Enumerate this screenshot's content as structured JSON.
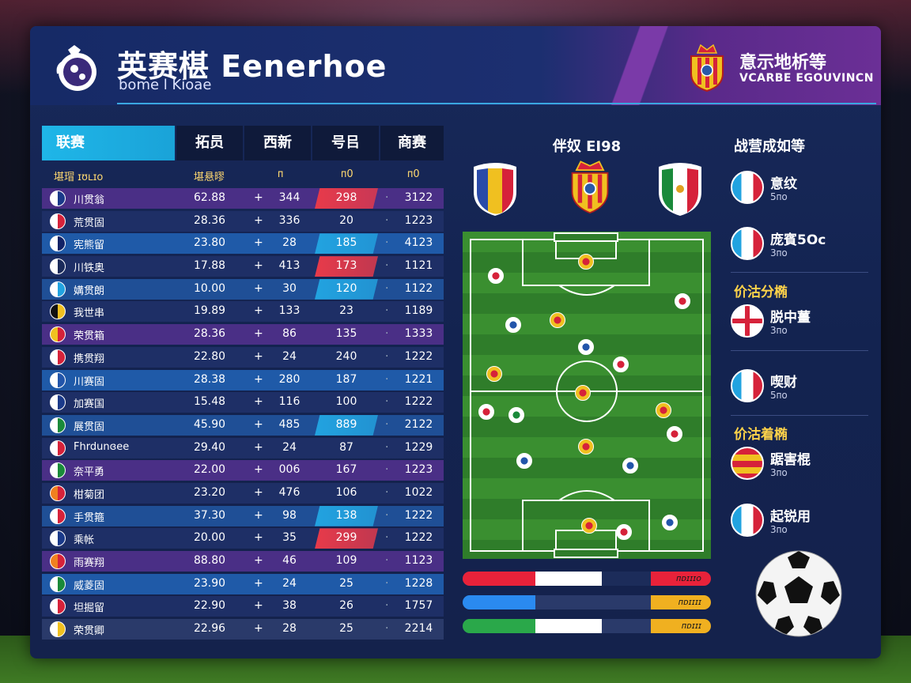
{
  "header": {
    "title": "英赛椹 Eenerhoe",
    "subtitle": "bome l Kioae",
    "right_title": "意示地析等",
    "right_sub": "VCARBE EGOUVINCN"
  },
  "table": {
    "headers": [
      "联赛",
      "拓员",
      "西新",
      "号㠯",
      "商赛"
    ],
    "subheaders": [
      "堪瑁 ɪʊʟɪo",
      "堪悬㬔",
      "ᴨ",
      "ᴨ0",
      "ᴨ0"
    ],
    "rows": [
      {
        "name": "川贯翁",
        "v1": "62.88",
        "v2": "344",
        "v3": "298",
        "v4": "3122",
        "flag": [
          "#fff",
          "#1a3a8a"
        ],
        "bg": "#4a2f86",
        "hl": "#e83a4a"
      },
      {
        "name": "荒贯固",
        "v1": "28.36",
        "v2": "336",
        "v3": "20",
        "v4": "1223",
        "flag": [
          "#fff",
          "#d6223a"
        ],
        "bg": "#1e2f66",
        "hl": ""
      },
      {
        "name": "宪熊留",
        "v1": "23.80",
        "v2": "28",
        "v3": "185",
        "v4": "4123",
        "flag": [
          "#fff",
          "#112266"
        ],
        "bg": "#1f5aa8",
        "hl": "#22a3e0"
      },
      {
        "name": "川铁奥",
        "v1": "17.88",
        "v2": "413",
        "v3": "173",
        "v4": "1121",
        "flag": [
          "#fff",
          "#1a2a5a"
        ],
        "bg": "#1e2f66",
        "hl": "#e83a4a"
      },
      {
        "name": "媾贯朗",
        "v1": "10.00",
        "v2": "30",
        "v3": "120",
        "v4": "1122",
        "flag": [
          "#fff",
          "#22a3e0"
        ],
        "bg": "#1f4f96",
        "hl": "#22a3e0"
      },
      {
        "name": "我世串",
        "v1": "19.89",
        "v2": "133",
        "v3": "23",
        "v4": "1189",
        "flag": [
          "#111",
          "#f0c020"
        ],
        "bg": "#1e2f66",
        "hl": ""
      },
      {
        "name": "荣贯箱",
        "v1": "28.36",
        "v2": "86",
        "v3": "135",
        "v4": "1333",
        "flag": [
          "#f0c020",
          "#d6223a"
        ],
        "bg": "#4a2f86",
        "hl": ""
      },
      {
        "name": "携贯翔",
        "v1": "22.80",
        "v2": "24",
        "v3": "240",
        "v4": "1222",
        "flag": [
          "#fff",
          "#d6223a"
        ],
        "bg": "#1e2f66",
        "hl": ""
      },
      {
        "name": "川赛固",
        "v1": "28.38",
        "v2": "280",
        "v3": "187",
        "v4": "1221",
        "flag": [
          "#fff",
          "#2255aa"
        ],
        "bg": "#1f5aa8",
        "hl": ""
      },
      {
        "name": "加赛国",
        "v1": "15.48",
        "v2": "116",
        "v3": "100",
        "v4": "1222",
        "flag": [
          "#fff",
          "#1a3a8a"
        ],
        "bg": "#1e2f66",
        "hl": ""
      },
      {
        "name": "展贯固",
        "v1": "45.90",
        "v2": "485",
        "v3": "889",
        "v4": "2122",
        "flag": [
          "#fff",
          "#1a8a3a"
        ],
        "bg": "#1f4f96",
        "hl": "#22a3e0"
      },
      {
        "name": "Fhrdunɞee",
        "v1": "29.40",
        "v2": "24",
        "v3": "87",
        "v4": "1229",
        "flag": [
          "#fff",
          "#d6223a"
        ],
        "bg": "#1e2f66",
        "hl": ""
      },
      {
        "name": "奈平勇",
        "v1": "22.00",
        "v2": "006",
        "v3": "167",
        "v4": "1223",
        "flag": [
          "#fff",
          "#1a8a3a"
        ],
        "bg": "#4a2f86",
        "hl": ""
      },
      {
        "name": "柑菊团",
        "v1": "23.20",
        "v2": "476",
        "v3": "106",
        "v4": "1022",
        "flag": [
          "#f08020",
          "#d6223a"
        ],
        "bg": "#1e2f66",
        "hl": ""
      },
      {
        "name": "手贯箍",
        "v1": "37.30",
        "v2": "98",
        "v3": "138",
        "v4": "1222",
        "flag": [
          "#fff",
          "#d6223a"
        ],
        "bg": "#1f4f96",
        "hl": "#22a3e0"
      },
      {
        "name": "乘帐",
        "v1": "20.00",
        "v2": "35",
        "v3": "299",
        "v4": "1222",
        "flag": [
          "#fff",
          "#1a3a8a"
        ],
        "bg": "#1e2f66",
        "hl": "#e83a4a"
      },
      {
        "name": "雨赛翔",
        "v1": "88.80",
        "v2": "46",
        "v3": "109",
        "v4": "1123",
        "flag": [
          "#f08020",
          "#d6223a"
        ],
        "bg": "#4a2f86",
        "hl": ""
      },
      {
        "name": "威菱固",
        "v1": "23.90",
        "v2": "24",
        "v3": "25",
        "v4": "1228",
        "flag": [
          "#fff",
          "#1a8a3a"
        ],
        "bg": "#1f5aa8",
        "hl": ""
      },
      {
        "name": "坦掘留",
        "v1": "22.90",
        "v2": "38",
        "v3": "26",
        "v4": "1757",
        "flag": [
          "#fff",
          "#d6223a"
        ],
        "bg": "#1e2f66",
        "hl": ""
      },
      {
        "name": "荣贯卿",
        "v1": "22.96",
        "v2": "28",
        "v3": "25",
        "v4": "2214",
        "flag": [
          "#fff",
          "#f0c020"
        ],
        "bg": "#2a3a6a",
        "hl": ""
      }
    ]
  },
  "match": {
    "title": "伴奴 EI98",
    "bars": [
      {
        "label": "ᴨᴅɪɪɪo",
        "colors": [
          "#e8223a",
          "#ffffff",
          "#1c2c5a",
          "#e8223a"
        ]
      },
      {
        "label": "ᴨᴅɪɪɪɪ",
        "colors": [
          "#2a8af0",
          "#2a3a6a",
          "#2a3a6a",
          "#f0b020"
        ]
      },
      {
        "label": "ᴨᴅɪɪɪ",
        "colors": [
          "#2aa84a",
          "#ffffff",
          "#2a3a6a",
          "#f0b020"
        ]
      }
    ]
  },
  "sidebar": {
    "title": "战营成如等",
    "items": [
      {
        "name": "意纹",
        "sub": "5ᴨo"
      },
      {
        "name": "庞賓5Oc",
        "sub": "3ᴨo"
      },
      {
        "name": "脱中薑",
        "sub": "3ᴨo"
      },
      {
        "name": "喫财",
        "sub": "5ᴨo"
      },
      {
        "name": "踞害棍",
        "sub": "3ᴨo"
      },
      {
        "name": "起锐用",
        "sub": "3ᴨo"
      }
    ],
    "sections": [
      "价沽分椭",
      "价沽着椭"
    ]
  }
}
